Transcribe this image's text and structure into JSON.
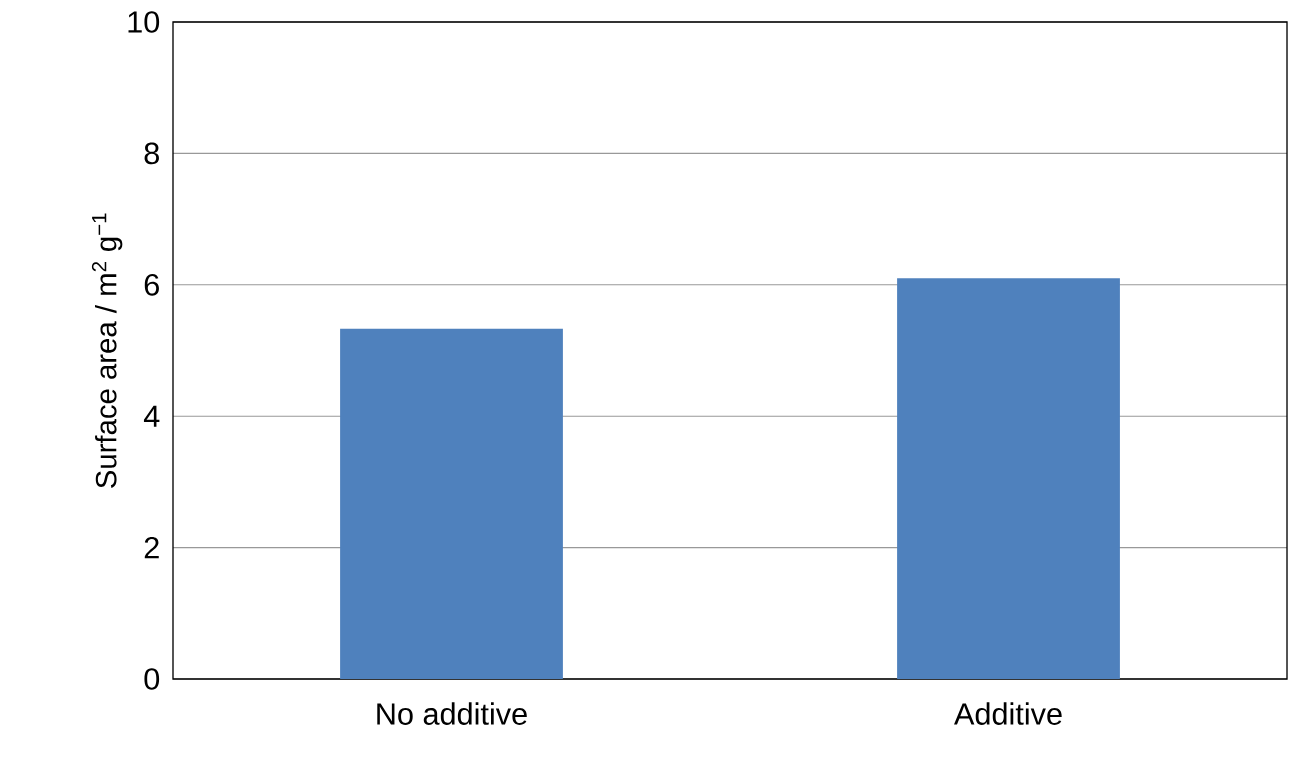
{
  "chart_data": {
    "type": "bar",
    "ylabel": "Surface area / m$^{2}$ g$^{−1}$",
    "categories": [
      "No additive",
      "Additive"
    ],
    "values": [
      5.33,
      6.1
    ],
    "color": "#4f81bd",
    "ylim": [
      0,
      10
    ],
    "yticks": [
      0,
      2,
      4,
      6,
      8,
      10
    ],
    "grid": "y"
  }
}
